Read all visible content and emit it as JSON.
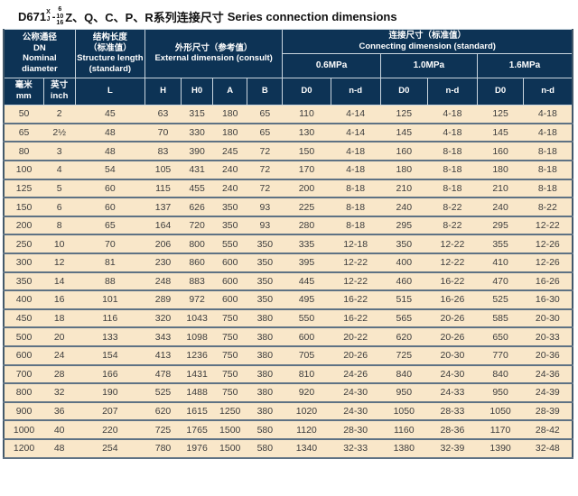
{
  "title": {
    "model": "D671",
    "superscript": "X",
    "subscript": "J",
    "dash": "-",
    "pressure_stack": [
      "6",
      "10",
      "16"
    ],
    "series_zh": "Z、Q、C、P、R系列连接尺寸",
    "series_en": "Series connection dimensions"
  },
  "colors": {
    "header_bg": "#0d3355",
    "body_bg": "#f9e7c9",
    "row_divider": "#5e7284",
    "header_divider": "#c9d5de",
    "body_text": "#3d3d3d",
    "header_text": "#ffffff",
    "page_bg": "#ffffff"
  },
  "table": {
    "header": {
      "nominal": "公称通径\nDN\nNominal\ndiameter",
      "structure": "结构长度\n（标准值）\nStructure length\n(standard)",
      "external": "外形尺寸（参考值）\nExternal dimension (consult)",
      "connecting": "连接尺寸（标准值）\nConnecting dimension (standard)",
      "pressures": [
        "0.6MPa",
        "1.0MPa",
        "1.6MPa"
      ],
      "units": [
        "毫米\nmm",
        "英寸\ninch",
        "L",
        "H",
        "H0",
        "A",
        "B",
        "D0",
        "n-d",
        "D0",
        "n-d",
        "D0",
        "n-d"
      ]
    },
    "rows": [
      [
        "50",
        "2",
        "45",
        "63",
        "315",
        "180",
        "65",
        "110",
        "4-14",
        "125",
        "4-18",
        "125",
        "4-18"
      ],
      [
        "65",
        "2½",
        "48",
        "70",
        "330",
        "180",
        "65",
        "130",
        "4-14",
        "145",
        "4-18",
        "145",
        "4-18"
      ],
      [
        "80",
        "3",
        "48",
        "83",
        "390",
        "245",
        "72",
        "150",
        "4-18",
        "160",
        "8-18",
        "160",
        "8-18"
      ],
      [
        "100",
        "4",
        "54",
        "105",
        "431",
        "240",
        "72",
        "170",
        "4-18",
        "180",
        "8-18",
        "180",
        "8-18"
      ],
      [
        "125",
        "5",
        "60",
        "115",
        "455",
        "240",
        "72",
        "200",
        "8-18",
        "210",
        "8-18",
        "210",
        "8-18"
      ],
      [
        "150",
        "6",
        "60",
        "137",
        "626",
        "350",
        "93",
        "225",
        "8-18",
        "240",
        "8-22",
        "240",
        "8-22"
      ],
      [
        "200",
        "8",
        "65",
        "164",
        "720",
        "350",
        "93",
        "280",
        "8-18",
        "295",
        "8-22",
        "295",
        "12-22"
      ],
      [
        "250",
        "10",
        "70",
        "206",
        "800",
        "550",
        "350",
        "335",
        "12-18",
        "350",
        "12-22",
        "355",
        "12-26"
      ],
      [
        "300",
        "12",
        "81",
        "230",
        "860",
        "600",
        "350",
        "395",
        "12-22",
        "400",
        "12-22",
        "410",
        "12-26"
      ],
      [
        "350",
        "14",
        "88",
        "248",
        "883",
        "600",
        "350",
        "445",
        "12-22",
        "460",
        "16-22",
        "470",
        "16-26"
      ],
      [
        "400",
        "16",
        "101",
        "289",
        "972",
        "600",
        "350",
        "495",
        "16-22",
        "515",
        "16-26",
        "525",
        "16-30"
      ],
      [
        "450",
        "18",
        "116",
        "320",
        "1043",
        "750",
        "380",
        "550",
        "16-22",
        "565",
        "20-26",
        "585",
        "20-30"
      ],
      [
        "500",
        "20",
        "133",
        "343",
        "1098",
        "750",
        "380",
        "600",
        "20-22",
        "620",
        "20-26",
        "650",
        "20-33"
      ],
      [
        "600",
        "24",
        "154",
        "413",
        "1236",
        "750",
        "380",
        "705",
        "20-26",
        "725",
        "20-30",
        "770",
        "20-36"
      ],
      [
        "700",
        "28",
        "166",
        "478",
        "1431",
        "750",
        "380",
        "810",
        "24-26",
        "840",
        "24-30",
        "840",
        "24-36"
      ],
      [
        "800",
        "32",
        "190",
        "525",
        "1488",
        "750",
        "380",
        "920",
        "24-30",
        "950",
        "24-33",
        "950",
        "24-39"
      ],
      [
        "900",
        "36",
        "207",
        "620",
        "1615",
        "1250",
        "380",
        "1020",
        "24-30",
        "1050",
        "28-33",
        "1050",
        "28-39"
      ],
      [
        "1000",
        "40",
        "220",
        "725",
        "1765",
        "1500",
        "580",
        "1120",
        "28-30",
        "1160",
        "28-36",
        "1170",
        "28-42"
      ],
      [
        "1200",
        "48",
        "254",
        "780",
        "1976",
        "1500",
        "580",
        "1340",
        "32-33",
        "1380",
        "32-39",
        "1390",
        "32-48"
      ]
    ]
  }
}
